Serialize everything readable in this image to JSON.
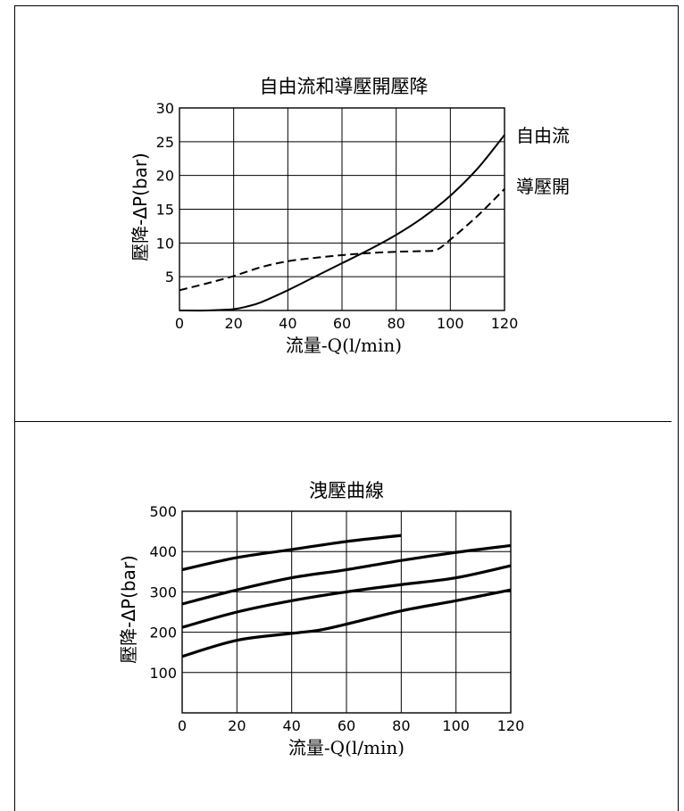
{
  "chart_data": [
    {
      "type": "line",
      "title": "自由流和導壓開壓降",
      "xlabel": "流量-Q(l/min)",
      "ylabel": "壓降-ΔP(bar)",
      "xlim": [
        0,
        120
      ],
      "ylim": [
        0,
        30
      ],
      "xticks": [
        "0",
        "20",
        "40",
        "60",
        "80",
        "100",
        "120"
      ],
      "yticks": [
        "5",
        "10",
        "15",
        "20",
        "25",
        "30"
      ],
      "grid": true,
      "series": [
        {
          "name": "自由流",
          "style": "solid",
          "x": [
            0,
            10,
            20,
            25,
            30,
            40,
            50,
            60,
            70,
            80,
            90,
            100,
            110,
            120
          ],
          "y": [
            0,
            0,
            0.2,
            0.6,
            1.2,
            3,
            5,
            7,
            9,
            11.2,
            13.8,
            17,
            21,
            26
          ]
        },
        {
          "name": "導壓開",
          "style": "dashed",
          "x": [
            0,
            10,
            20,
            30,
            40,
            50,
            60,
            70,
            80,
            90,
            95,
            100,
            110,
            120
          ],
          "y": [
            3,
            4,
            5.1,
            6.4,
            7.3,
            7.8,
            8.2,
            8.5,
            8.7,
            8.8,
            9,
            10.5,
            14,
            18
          ]
        }
      ]
    },
    {
      "type": "line",
      "title": "洩壓曲線",
      "xlabel": "流量-Q(l/min)",
      "ylabel": "壓降-ΔP(bar)",
      "xlim": [
        0,
        120
      ],
      "ylim": [
        0,
        500
      ],
      "xticks": [
        "0",
        "20",
        "40",
        "60",
        "80",
        "100",
        "120"
      ],
      "yticks": [
        "100",
        "200",
        "300",
        "400",
        "500"
      ],
      "grid": true,
      "series": [
        {
          "x": [
            0,
            20,
            40,
            60,
            80
          ],
          "y": [
            355,
            385,
            405,
            425,
            440
          ]
        },
        {
          "x": [
            0,
            20,
            40,
            60,
            80,
            100,
            120
          ],
          "y": [
            270,
            305,
            335,
            355,
            378,
            398,
            415
          ]
        },
        {
          "x": [
            0,
            20,
            40,
            60,
            80,
            100,
            120
          ],
          "y": [
            212,
            250,
            278,
            300,
            318,
            335,
            365
          ]
        },
        {
          "x": [
            0,
            20,
            40,
            50,
            60,
            80,
            100,
            120
          ],
          "y": [
            140,
            180,
            197,
            205,
            220,
            253,
            278,
            305
          ]
        }
      ]
    }
  ]
}
